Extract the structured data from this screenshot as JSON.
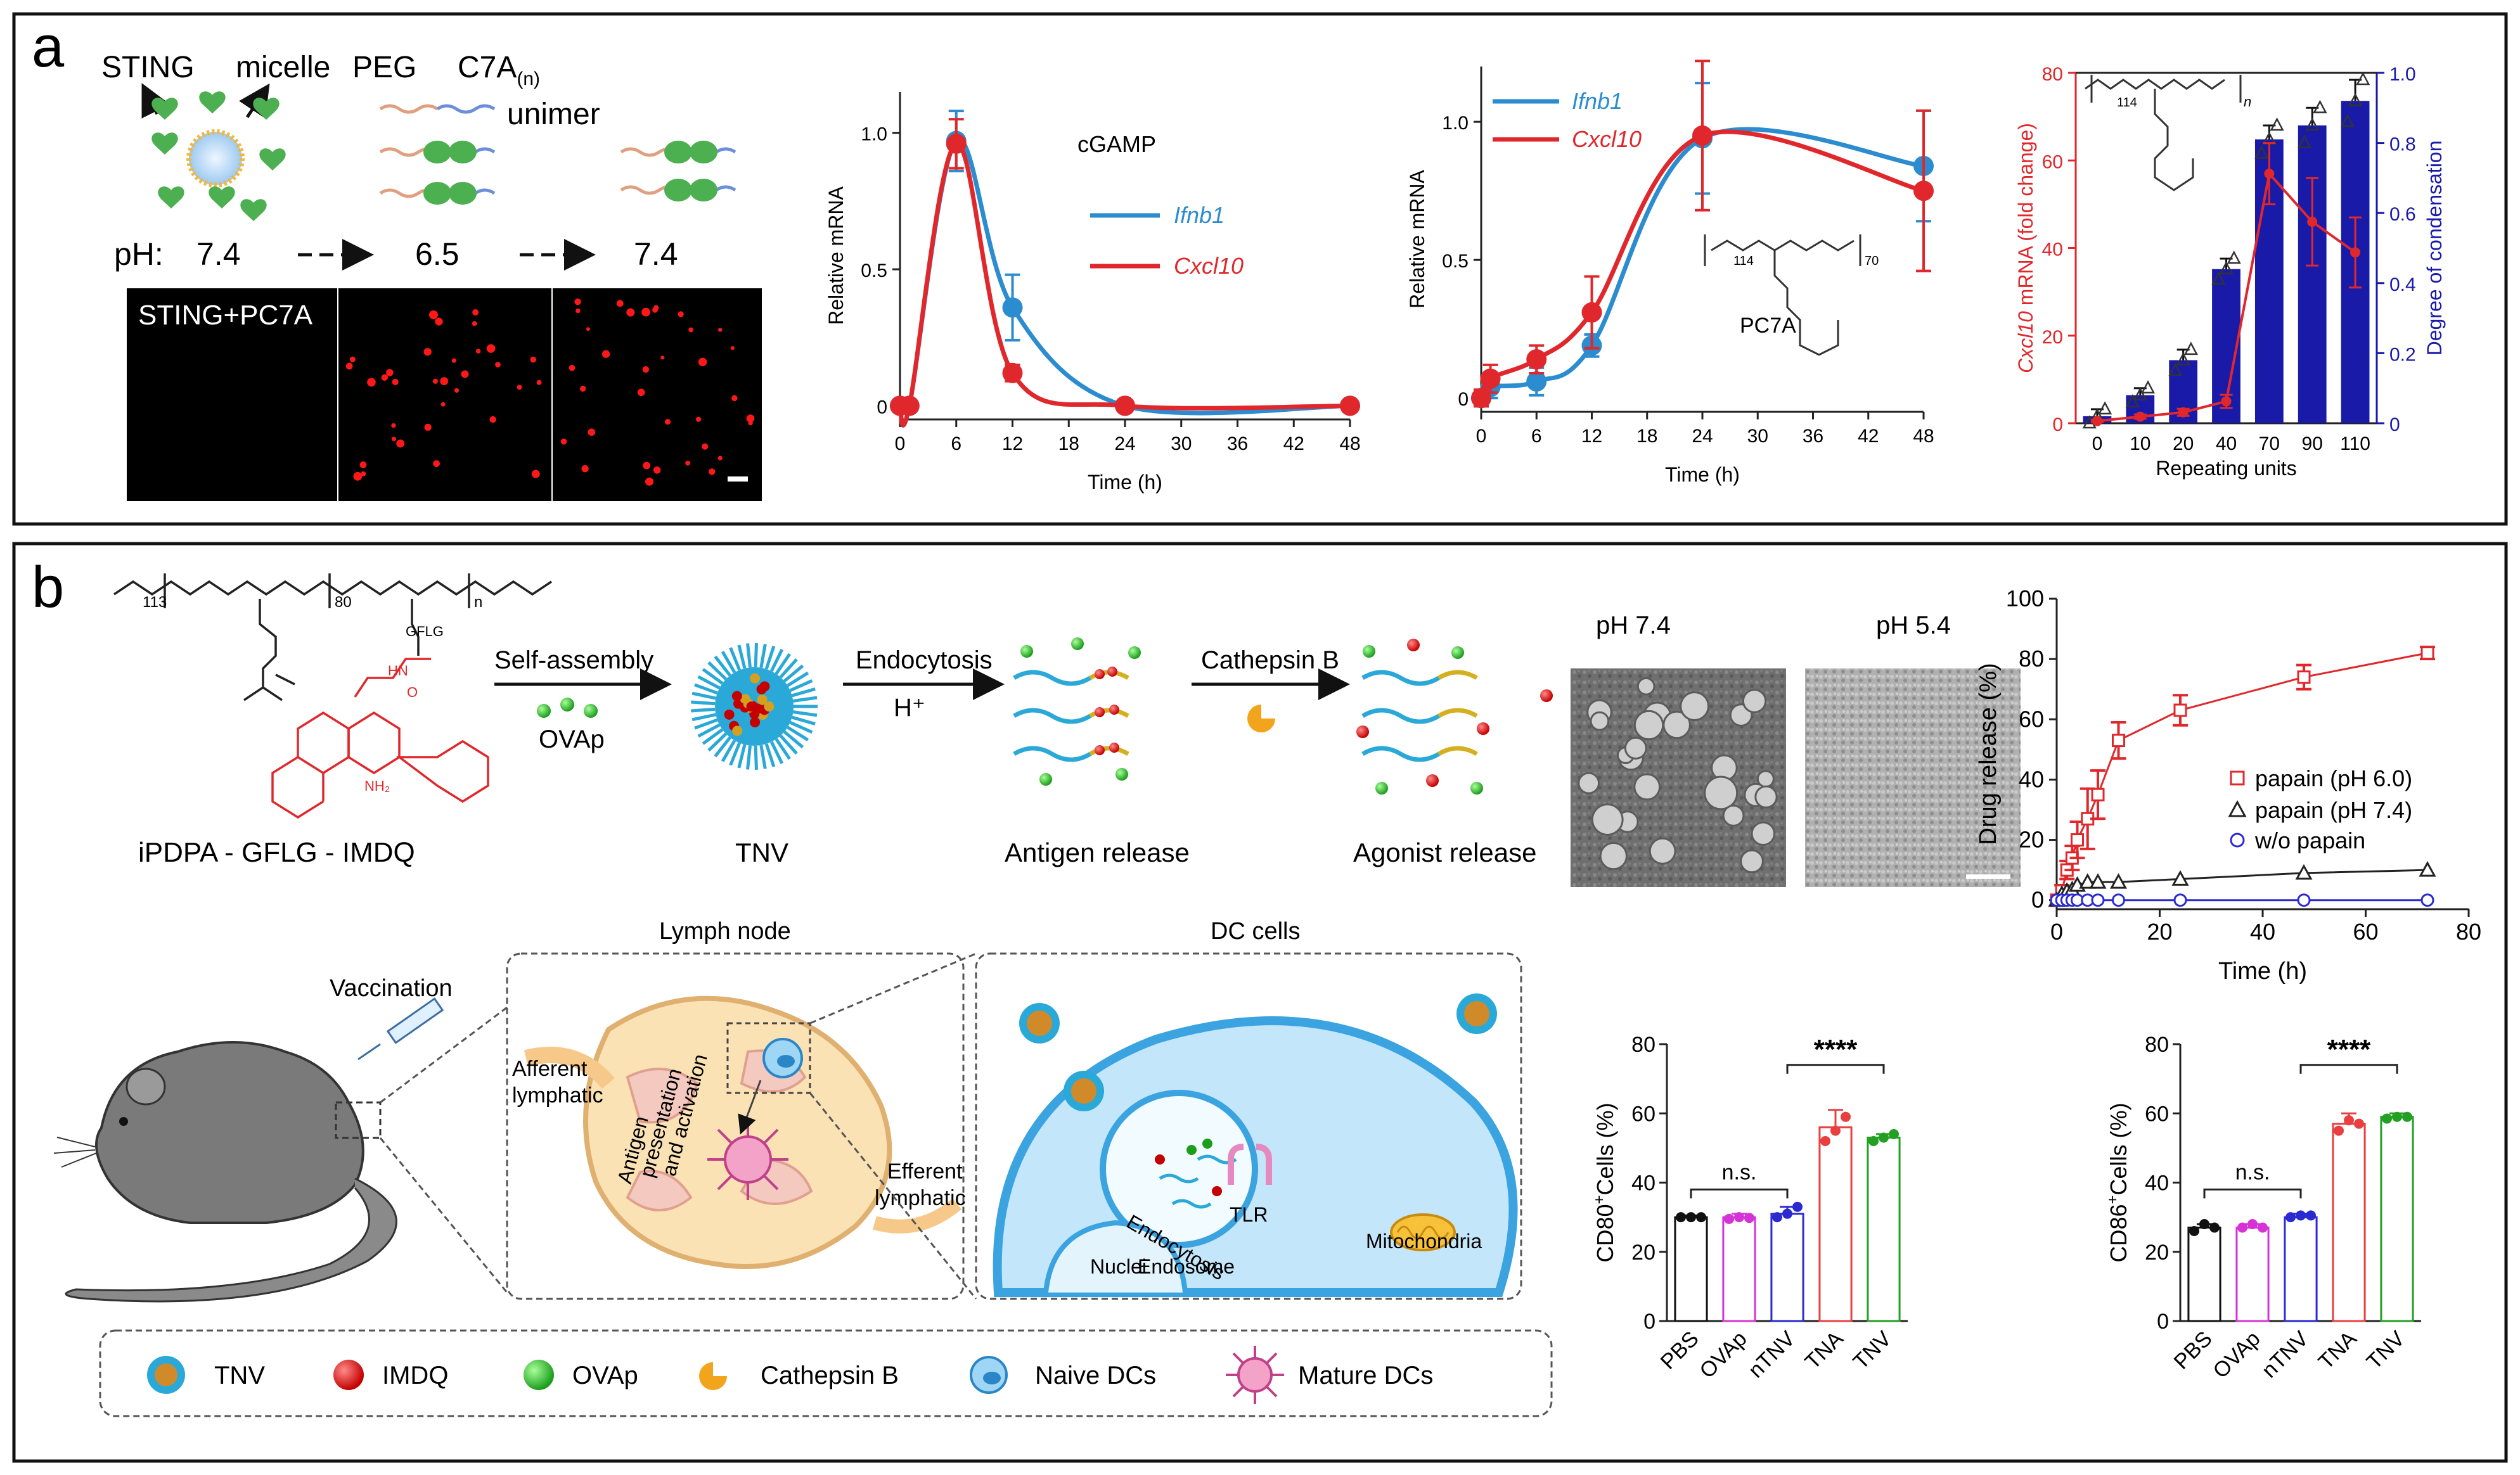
{
  "panel_a": {
    "letter": "a",
    "schematic": {
      "labels": {
        "sting": "STING",
        "micelle": "micelle",
        "peg": "PEG",
        "c7a": "C7A",
        "c7a_sub": "(n)",
        "unimer": "unimer"
      },
      "ph": {
        "label": "pH:",
        "v1": "7.4",
        "v2": "6.5",
        "v3": "7.4"
      },
      "micrograph_label": "STING+PC7A"
    },
    "chart1": {
      "annotation": "cGAMP",
      "legend1": "Ifnb1",
      "legend2": "Cxcl10"
    },
    "chart2": {
      "legend1": "Ifnb1",
      "legend2": "Cxcl10",
      "annotation": "PC7A",
      "struct_n1": "114",
      "struct_n2": "70"
    },
    "chart3": {
      "struct_n1": "114",
      "struct_n2": "n",
      "y_left_label_italic": "Cxcl10",
      "y_left_label_rest": " mRNA (fold change)"
    },
    "colors": {
      "ifnb1": "#2b8ccf",
      "cxcl10": "#e0282c",
      "bar": "#1a1aa8",
      "red": "#e0282c"
    }
  },
  "panel_b": {
    "letter": "b",
    "scheme": {
      "polymer_subs": {
        "n113": "113",
        "n80": "80",
        "n": "n",
        "gflg": "GFLG",
        "hn": "HN",
        "o": "O",
        "nh2": "NH₂"
      },
      "polymer_name": "iPDPA - GFLG - IMDQ",
      "step1": "Self-assembly",
      "step1_sub": "OVAp",
      "tnv_label": "TNV",
      "step2": "Endocytosis",
      "step2_sub": "H⁺",
      "antigen_release": "Antigen release",
      "step3": "Cathepsin B",
      "agonist_release": "Agonist release"
    },
    "tem": {
      "left_label": "pH 7.4",
      "right_label": "pH 5.4"
    },
    "lymph": {
      "vaccination": "Vaccination",
      "lymph_node_title": "Lymph node",
      "afferent": "Afferent lymphatic",
      "efferent": "Efferent lymphatic",
      "antigen_pres": "Antigen presentation and activation",
      "dc_title": "DC cells",
      "endocytosis": "Endocytosis",
      "tlr": "TLR",
      "nuclei": "Nuclei",
      "endosome": "Endosome",
      "mitochondria": "Mitochondria"
    },
    "legend": {
      "tnv": "TNV",
      "imdq": "IMDQ",
      "ovap": "OVAp",
      "cathepsin": "Cathepsin B",
      "naive": "Naive DCs",
      "mature": "Mature DCs"
    },
    "bar_sig": {
      "ns": "n.s.",
      "stars": "****"
    }
  },
  "chart_data": [
    {
      "type": "line",
      "title": "cGAMP",
      "xlabel": "Time (h)",
      "ylabel": "Relative mRNA",
      "xlim": [
        0,
        48
      ],
      "ylim": [
        -0.05,
        1.15
      ],
      "xticks": [
        "0",
        "6",
        "12",
        "18",
        "24",
        "30",
        "36",
        "42",
        "48"
      ],
      "yticks": [
        "0",
        "0.5",
        "1.0"
      ],
      "series": [
        {
          "name": "Ifnb1",
          "color": "#2b8ccf",
          "x": [
            0,
            1,
            6,
            12,
            24,
            48
          ],
          "values": [
            0,
            0,
            0.97,
            0.36,
            0,
            0
          ],
          "err": [
            0,
            0,
            0.11,
            0.12,
            0,
            0
          ]
        },
        {
          "name": "Cxcl10",
          "color": "#e0282c",
          "x": [
            0,
            1,
            6,
            12,
            24,
            48
          ],
          "values": [
            0,
            0,
            0.96,
            0.12,
            0,
            0
          ],
          "err": [
            0,
            0,
            0.09,
            0.03,
            0,
            0
          ]
        }
      ]
    },
    {
      "type": "line",
      "title": "PC7A",
      "xlabel": "Time (h)",
      "ylabel": "Relative mRNA",
      "xlim": [
        0,
        48
      ],
      "ylim": [
        -0.05,
        1.2
      ],
      "xticks": [
        "0",
        "6",
        "12",
        "18",
        "24",
        "30",
        "36",
        "42",
        "48"
      ],
      "yticks": [
        "0",
        "0.5",
        "1.0"
      ],
      "series": [
        {
          "name": "Ifnb1",
          "color": "#2b8ccf",
          "x": [
            0,
            1,
            6,
            12,
            24,
            48
          ],
          "values": [
            0,
            0.04,
            0.06,
            0.19,
            0.94,
            0.84
          ],
          "err": [
            0.03,
            0.04,
            0.05,
            0.04,
            0.2,
            0.2
          ]
        },
        {
          "name": "Cxcl10",
          "color": "#e0282c",
          "x": [
            0,
            1,
            6,
            12,
            24,
            48
          ],
          "values": [
            0,
            0.07,
            0.14,
            0.31,
            0.95,
            0.75
          ],
          "err": [
            0.03,
            0.05,
            0.05,
            0.13,
            0.27,
            0.29
          ]
        }
      ]
    },
    {
      "type": "bar",
      "xlabel": "Repeating units",
      "ylabel_left": "Cxcl10 mRNA (fold change)",
      "ylabel_right": "Degree of condensation",
      "categories": [
        "0",
        "10",
        "20",
        "40",
        "70",
        "90",
        "110"
      ],
      "ylim_left": [
        0,
        80
      ],
      "ylim_right": [
        0,
        1.0
      ],
      "yticks_left": [
        "0",
        "20",
        "40",
        "60",
        "80"
      ],
      "yticks_right": [
        "0",
        "0.2",
        "0.4",
        "0.6",
        "0.8",
        "1.0"
      ],
      "series": [
        {
          "name": "Degree of condensation",
          "axis": "right",
          "color": "#1a1aa8",
          "values": [
            0.02,
            0.08,
            0.18,
            0.44,
            0.81,
            0.85,
            0.92
          ],
          "err": [
            0.02,
            0.02,
            0.03,
            0.03,
            0.04,
            0.05,
            0.06
          ]
        },
        {
          "name": "Cxcl10 mRNA",
          "axis": "left",
          "color": "#e0282c",
          "values": [
            0.5,
            1.5,
            2.5,
            5,
            57,
            46,
            39
          ],
          "err": [
            0.3,
            0.5,
            0.8,
            1.5,
            7,
            10,
            8
          ]
        }
      ]
    },
    {
      "type": "line",
      "xlabel": "Time (h)",
      "ylabel": "Drug release (%)",
      "xlim": [
        0,
        80
      ],
      "ylim": [
        -3,
        100
      ],
      "xticks": [
        "0",
        "20",
        "40",
        "60",
        "80"
      ],
      "yticks": [
        "0",
        "20",
        "40",
        "60",
        "80",
        "100"
      ],
      "series": [
        {
          "name": "papain (pH 6.0)",
          "marker": "square",
          "color": "#e0282c",
          "x": [
            0,
            1,
            2,
            3,
            4,
            6,
            8,
            12,
            24,
            48,
            72
          ],
          "values": [
            0,
            3,
            10,
            14,
            20,
            27,
            35,
            53,
            63,
            74,
            82
          ],
          "err": [
            0,
            2,
            3,
            4,
            6,
            10,
            8,
            6,
            5,
            4,
            2
          ]
        },
        {
          "name": "papain (pH 7.4)",
          "marker": "triangle",
          "color": "#222222",
          "x": [
            0,
            1,
            2,
            3,
            4,
            6,
            8,
            12,
            24,
            48,
            72
          ],
          "values": [
            0,
            2,
            3,
            3.5,
            5,
            6,
            6,
            6,
            7,
            9,
            10
          ],
          "err": [
            0,
            0,
            0,
            0,
            0,
            0,
            0,
            0,
            0,
            0,
            0
          ]
        },
        {
          "name": "w/o papain",
          "marker": "circle",
          "color": "#2a2ad0",
          "x": [
            0,
            1,
            2,
            3,
            4,
            6,
            8,
            12,
            24,
            48,
            72
          ],
          "values": [
            0,
            0,
            0,
            0,
            0,
            0,
            0,
            0,
            0,
            0,
            0
          ],
          "err": [
            0,
            0,
            0,
            0,
            0,
            0,
            0,
            0,
            0,
            0,
            0
          ]
        }
      ]
    },
    {
      "type": "bar",
      "ylabel": "CD80+Cells (%)",
      "ylabel_main": "CD80",
      "ylabel_sup": "+",
      "ylabel_rest": "Cells (%)",
      "categories": [
        "PBS",
        "OVAp",
        "nTNV",
        "TNA",
        "TNV"
      ],
      "colors": [
        "#111111",
        "#d633d6",
        "#2a2ad0",
        "#e84040",
        "#23a023"
      ],
      "ylim": [
        0,
        80
      ],
      "yticks": [
        "0",
        "20",
        "40",
        "60",
        "80"
      ],
      "values": [
        30,
        30,
        31,
        56,
        53
      ],
      "err": [
        0.5,
        1,
        2,
        5,
        1
      ],
      "points": [
        [
          30,
          30,
          30
        ],
        [
          29.5,
          30,
          29.8
        ],
        [
          30,
          31,
          33
        ],
        [
          52,
          55,
          59
        ],
        [
          52,
          53,
          54
        ]
      ]
    },
    {
      "type": "bar",
      "ylabel": "CD86+Cells (%)",
      "ylabel_main": "CD86",
      "ylabel_sup": "+",
      "ylabel_rest": "Cells (%)",
      "categories": [
        "PBS",
        "OVAp",
        "nTNV",
        "TNA",
        "TNV"
      ],
      "colors": [
        "#111111",
        "#d633d6",
        "#2a2ad0",
        "#e84040",
        "#23a023"
      ],
      "ylim": [
        0,
        80
      ],
      "yticks": [
        "0",
        "20",
        "40",
        "60",
        "80"
      ],
      "values": [
        27,
        27,
        30,
        57,
        59
      ],
      "err": [
        1,
        1,
        1,
        3,
        1
      ],
      "points": [
        [
          26,
          28,
          27
        ],
        [
          27,
          28,
          27
        ],
        [
          30,
          30.5,
          30.5
        ],
        [
          55,
          58,
          57
        ],
        [
          58.5,
          59,
          59
        ]
      ]
    }
  ]
}
